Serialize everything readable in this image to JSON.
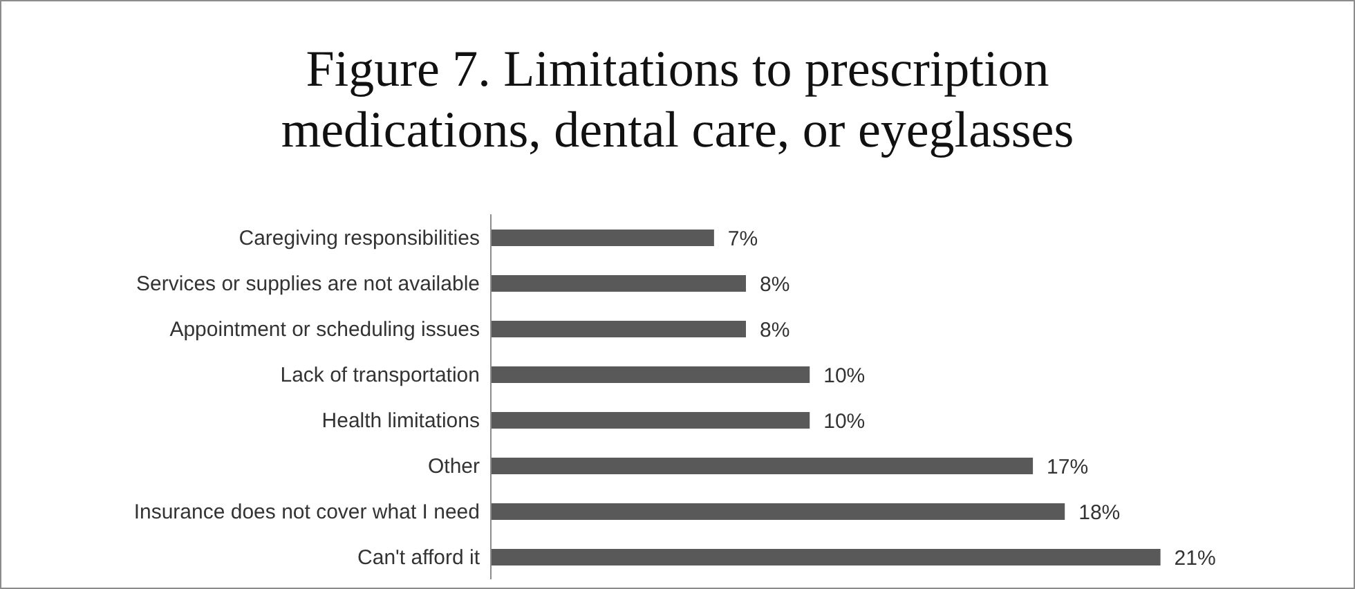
{
  "chart_data": {
    "type": "bar",
    "orientation": "horizontal",
    "title": "Figure 7. Limitations to prescription medications, dental care, or eyeglasses",
    "categories": [
      "Caregiving responsibilities",
      "Services or supplies are not available",
      "Appointment or scheduling issues",
      "Lack of transportation",
      "Health limitations",
      "Other",
      "Insurance does not cover what I need",
      "Can't afford it"
    ],
    "values": [
      7,
      8,
      8,
      10,
      10,
      17,
      18,
      21
    ],
    "value_labels": [
      "7%",
      "8%",
      "8%",
      "10%",
      "10%",
      "17%",
      "18%",
      "21%"
    ],
    "color": "#595959"
  }
}
